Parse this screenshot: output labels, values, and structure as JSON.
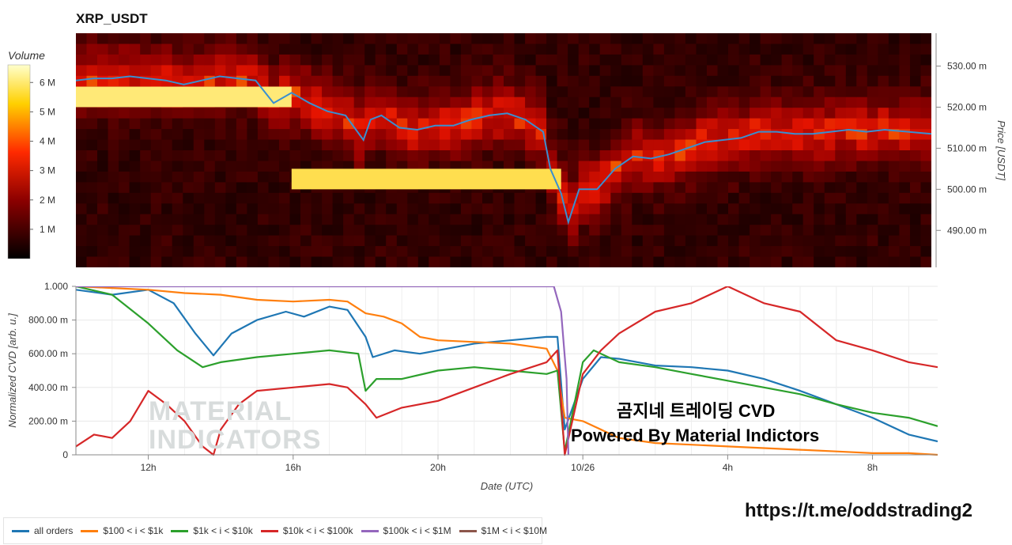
{
  "title": "XRP_USDT",
  "colorbar": {
    "title": "Volume",
    "ticks": [
      "6 M",
      "5 M",
      "4 M",
      "3 M",
      "2 M",
      "1 M"
    ],
    "tick_values": [
      6,
      5,
      4,
      3,
      2,
      1
    ],
    "max": 6.6
  },
  "watermark": {
    "line1": "MATERIAL",
    "line2": "INDICATORS"
  },
  "annotations": {
    "line1": "곰지네 트레이딩 CVD",
    "line2": "Powered By Material Indictors"
  },
  "url": "https://t.me/oddstrading2",
  "colors": {
    "all": "#1f77b4",
    "s100_1k": "#ff7f0e",
    "s1k_10k": "#2ca02c",
    "s10k_100k": "#d62728",
    "s100k_1m": "#9467bd",
    "s1m_10m": "#8c564b",
    "price": "#3a8fd0"
  },
  "legend": [
    {
      "label": "all orders",
      "color": "#1f77b4"
    },
    {
      "label": "$100 < i < $1k",
      "color": "#ff7f0e"
    },
    {
      "label": "$1k < i < $10k",
      "color": "#2ca02c"
    },
    {
      "label": "$10k < i < $100k",
      "color": "#d62728"
    },
    {
      "label": "$100k < i < $1M",
      "color": "#9467bd"
    },
    {
      "label": "$1M < i < $10M",
      "color": "#8c564b"
    }
  ],
  "chart_data": [
    {
      "type": "heatmap",
      "title": "XRP_USDT",
      "ylabel": "Price [USDT]",
      "ylim": [
        481,
        538
      ],
      "yticks": [
        "530.00 m",
        "520.00 m",
        "510.00 m",
        "500.00 m",
        "490.00 m"
      ],
      "ytick_values": [
        530,
        520,
        510,
        500,
        490
      ],
      "colorbar_label": "Volume",
      "price_series": {
        "name": "price",
        "x_hours": [
          10,
          10.5,
          11,
          11.5,
          12,
          12.5,
          13,
          13.5,
          14,
          14.5,
          15,
          15.5,
          16,
          16.5,
          17,
          17.5,
          18,
          18.2,
          18.5,
          19,
          19.5,
          20,
          20.5,
          21,
          21.5,
          22,
          22.5,
          23,
          23.2,
          23.5,
          23.7,
          24,
          24.5,
          25,
          25.5,
          26,
          26.5,
          27,
          27.5,
          28,
          28.5,
          29,
          29.5,
          30,
          30.5,
          31,
          31.5,
          32,
          32.5,
          33.8
        ],
        "price": [
          526.5,
          527,
          527,
          527.5,
          527,
          526.5,
          525.5,
          526.5,
          527.5,
          527,
          526.5,
          521,
          523.5,
          521,
          519,
          518,
          512,
          517,
          518,
          515,
          514.5,
          515.5,
          515.5,
          517,
          518,
          518.5,
          517,
          514,
          505,
          499,
          492,
          500,
          500,
          505,
          508,
          507.5,
          508.5,
          510,
          511.5,
          512,
          512.5,
          514,
          514,
          513.5,
          513.5,
          514,
          514.5,
          514,
          514.5,
          513.5
        ]
      },
      "heavy_blocks": [
        {
          "x_start_hours": 10,
          "x_end_hours": 16,
          "price_low": 520,
          "price_high": 525,
          "volume_m": 6.2
        },
        {
          "x_start_hours": 16,
          "x_end_hours": 23.5,
          "price_low": 500,
          "price_high": 505,
          "volume_m": 6.0
        }
      ]
    },
    {
      "type": "line",
      "xlabel": "Date (UTC)",
      "ylabel": "Normalized CVD [arb. u.]",
      "xlim_hours": [
        10,
        33.8
      ],
      "ylim": [
        0,
        1
      ],
      "xticks": [
        {
          "label": "12h",
          "hours": 12
        },
        {
          "label": "16h",
          "hours": 16
        },
        {
          "label": "20h",
          "hours": 20
        },
        {
          "label": "10/26",
          "hours": 24
        },
        {
          "label": "4h",
          "hours": 28
        },
        {
          "label": "8h",
          "hours": 32
        }
      ],
      "yticks": [
        "1.000",
        "800.00 m",
        "600.00 m",
        "400.00 m",
        "200.00 m",
        "0"
      ],
      "ytick_values": [
        1,
        0.8,
        0.6,
        0.4,
        0.2,
        0
      ],
      "series": [
        {
          "name": "all orders",
          "color": "#1f77b4",
          "x": [
            10,
            11,
            12,
            12.7,
            13.3,
            13.8,
            14.3,
            15,
            15.8,
            16.3,
            17,
            17.5,
            18,
            18.2,
            18.8,
            19.5,
            20,
            21,
            22,
            23,
            23.3,
            23.5,
            24,
            24.5,
            25,
            26,
            27,
            28,
            29,
            30,
            31,
            32,
            33,
            33.8
          ],
          "y": [
            0.98,
            0.95,
            0.98,
            0.9,
            0.72,
            0.59,
            0.72,
            0.8,
            0.85,
            0.82,
            0.88,
            0.86,
            0.7,
            0.58,
            0.62,
            0.6,
            0.62,
            0.66,
            0.68,
            0.7,
            0.7,
            0.15,
            0.45,
            0.58,
            0.57,
            0.53,
            0.52,
            0.5,
            0.45,
            0.38,
            0.3,
            0.22,
            0.12,
            0.08
          ]
        },
        {
          "name": "$100 < i < $1k",
          "color": "#ff7f0e",
          "x": [
            10,
            11,
            12,
            13,
            14,
            15,
            16,
            17,
            17.5,
            18,
            18.5,
            19,
            19.5,
            20,
            21,
            22,
            23,
            23.3,
            23.5,
            24,
            25,
            26,
            27,
            28,
            29,
            30,
            31,
            32,
            33,
            33.8
          ],
          "y": [
            1.0,
            0.99,
            0.98,
            0.96,
            0.95,
            0.92,
            0.91,
            0.92,
            0.91,
            0.84,
            0.82,
            0.78,
            0.7,
            0.68,
            0.67,
            0.66,
            0.63,
            0.5,
            0.22,
            0.2,
            0.1,
            0.07,
            0.06,
            0.05,
            0.04,
            0.03,
            0.02,
            0.01,
            0.01,
            0.0
          ]
        },
        {
          "name": "$1k < i < $10k",
          "color": "#2ca02c",
          "x": [
            10,
            11,
            12,
            12.8,
            13.5,
            14,
            15,
            16,
            17,
            17.8,
            18,
            18.3,
            19,
            20,
            21,
            22,
            23,
            23.3,
            23.5,
            24,
            24.3,
            25,
            26,
            27,
            28,
            29,
            30,
            31,
            32,
            33,
            33.8
          ],
          "y": [
            1.0,
            0.95,
            0.78,
            0.62,
            0.52,
            0.55,
            0.58,
            0.6,
            0.62,
            0.6,
            0.38,
            0.45,
            0.45,
            0.5,
            0.52,
            0.5,
            0.48,
            0.5,
            0.02,
            0.55,
            0.62,
            0.55,
            0.52,
            0.48,
            0.44,
            0.4,
            0.36,
            0.3,
            0.25,
            0.22,
            0.17
          ]
        },
        {
          "name": "$10k < i < $100k",
          "color": "#d62728",
          "x": [
            10,
            10.5,
            11,
            11.5,
            12,
            12.5,
            13,
            13.5,
            13.8,
            14,
            14.5,
            15,
            16,
            17,
            17.5,
            18,
            18.3,
            19,
            20,
            21,
            22,
            23,
            23.3,
            23.5,
            24,
            24.5,
            25,
            26,
            27,
            28,
            29,
            30,
            31,
            32,
            33,
            33.8
          ],
          "y": [
            0.05,
            0.12,
            0.1,
            0.2,
            0.38,
            0.3,
            0.2,
            0.05,
            0.0,
            0.15,
            0.3,
            0.38,
            0.4,
            0.42,
            0.4,
            0.3,
            0.22,
            0.28,
            0.32,
            0.4,
            0.48,
            0.55,
            0.62,
            0.0,
            0.48,
            0.62,
            0.72,
            0.85,
            0.9,
            1.0,
            0.9,
            0.85,
            0.68,
            0.62,
            0.55,
            0.52
          ]
        },
        {
          "name": "$100k < i < $1M",
          "color": "#9467bd",
          "x": [
            10,
            12,
            14,
            16,
            18,
            20,
            22,
            23.2,
            23.4,
            23.55,
            23.6
          ],
          "y": [
            1.0,
            1.0,
            1.0,
            1.0,
            1.0,
            1.0,
            1.0,
            1.0,
            0.85,
            0.45,
            0.0
          ]
        },
        {
          "name": "$1M < i < $10M",
          "color": "#8c564b",
          "x": [],
          "y": []
        }
      ]
    }
  ]
}
